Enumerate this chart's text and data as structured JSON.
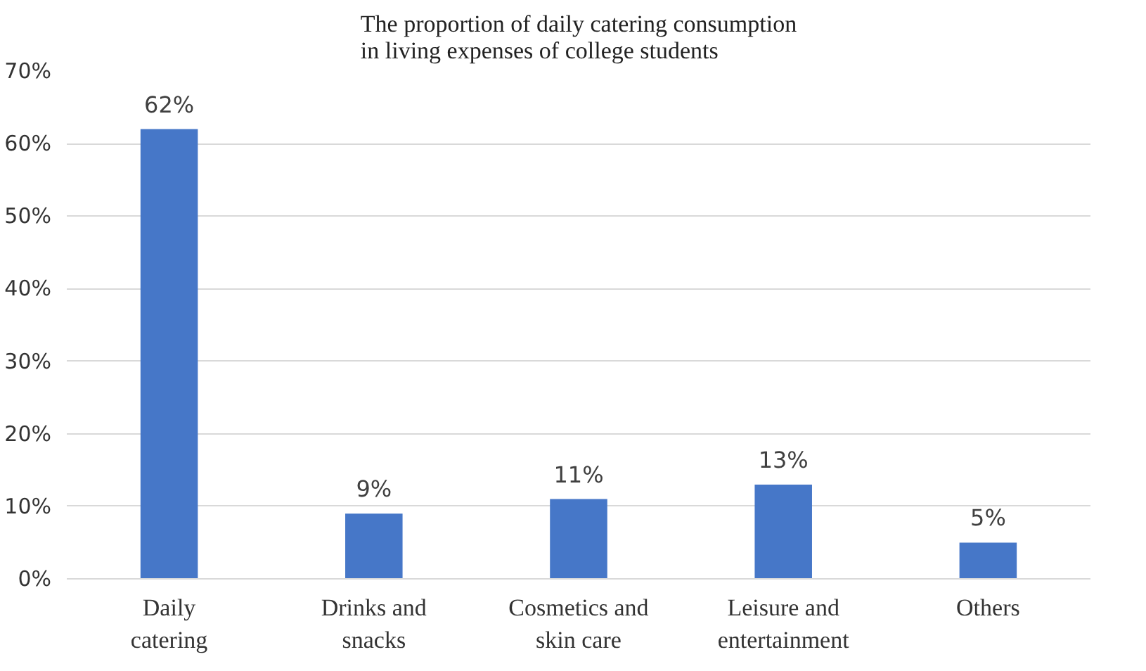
{
  "chart_data": {
    "type": "bar",
    "title": "The proportion of daily catering consumption in living expenses of college students",
    "categories": [
      "Daily catering",
      "Drinks and snacks",
      "Cosmetics and skin care",
      "Leisure and entertainment",
      "Others"
    ],
    "values": [
      62,
      9,
      11,
      13,
      5
    ],
    "color": "#4677c8",
    "ylim": [
      0,
      70
    ],
    "yticks": [
      {
        "value": 0,
        "label": "0%"
      },
      {
        "value": 10,
        "label": "10%"
      },
      {
        "value": 20,
        "label": "20%"
      },
      {
        "value": 30,
        "label": "30%"
      },
      {
        "value": 40,
        "label": "40%"
      },
      {
        "value": 50,
        "label": "50%"
      },
      {
        "value": 60,
        "label": "60%"
      },
      {
        "value": 70,
        "label": "70%"
      }
    ],
    "value_labels": [
      "62%",
      "9%",
      "11%",
      "13%",
      "5%"
    ],
    "grid": "y"
  }
}
